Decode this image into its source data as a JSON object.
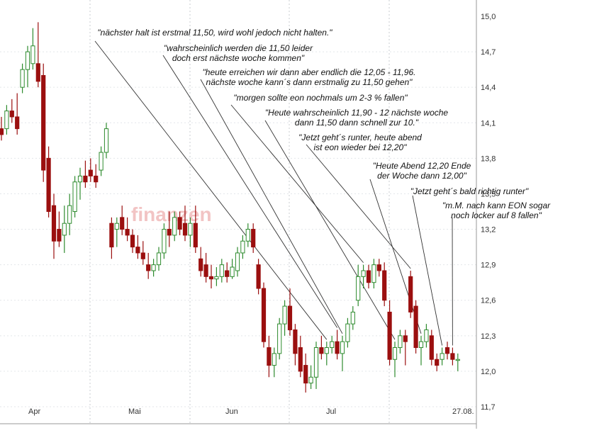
{
  "chart_data": {
    "type": "candlestick",
    "colors": {
      "up": "#2e8b2e",
      "down": "#9b0f0f",
      "grid": "#c8ccd2"
    },
    "ylim": [
      11.7,
      15.0
    ],
    "yticks": [
      "14,7",
      "14,4",
      "14,1",
      "13,8",
      "13,5",
      "13,2",
      "12,9",
      "12,6",
      "12,3",
      "12,0",
      "11,7"
    ],
    "yticks_top_partial": "15,0",
    "xlabels": [
      "Apr",
      "Mai",
      "Jun",
      "Jul",
      "27.08."
    ],
    "watermark": "finanzen",
    "series": [
      {
        "o": 14.05,
        "h": 14.15,
        "l": 13.95,
        "c": 14.0
      },
      {
        "o": 14.05,
        "h": 14.25,
        "l": 14.0,
        "c": 14.2
      },
      {
        "o": 14.2,
        "h": 14.3,
        "l": 14.1,
        "c": 14.15
      },
      {
        "o": 14.15,
        "h": 14.35,
        "l": 14.0,
        "c": 14.05
      },
      {
        "o": 14.4,
        "h": 14.6,
        "l": 14.35,
        "c": 14.55
      },
      {
        "o": 14.55,
        "h": 14.75,
        "l": 14.4,
        "c": 14.7
      },
      {
        "o": 14.6,
        "h": 14.9,
        "l": 14.55,
        "c": 14.75
      },
      {
        "o": 14.6,
        "h": 14.95,
        "l": 14.4,
        "c": 14.45
      },
      {
        "o": 14.5,
        "h": 14.6,
        "l": 13.6,
        "c": 13.7
      },
      {
        "o": 13.8,
        "h": 13.9,
        "l": 13.3,
        "c": 13.35
      },
      {
        "o": 13.4,
        "h": 13.5,
        "l": 12.95,
        "c": 13.1
      },
      {
        "o": 13.2,
        "h": 13.35,
        "l": 13.05,
        "c": 13.1
      },
      {
        "o": 13.15,
        "h": 13.4,
        "l": 13.0,
        "c": 13.25
      },
      {
        "o": 13.25,
        "h": 13.5,
        "l": 13.15,
        "c": 13.4
      },
      {
        "o": 13.35,
        "h": 13.65,
        "l": 13.3,
        "c": 13.6
      },
      {
        "o": 13.6,
        "h": 13.72,
        "l": 13.45,
        "c": 13.65
      },
      {
        "o": 13.65,
        "h": 13.78,
        "l": 13.55,
        "c": 13.6
      },
      {
        "o": 13.7,
        "h": 13.8,
        "l": 13.6,
        "c": 13.65
      },
      {
        "o": 13.65,
        "h": 13.75,
        "l": 13.55,
        "c": 13.6
      },
      {
        "o": 13.7,
        "h": 13.9,
        "l": 13.65,
        "c": 13.85
      },
      {
        "o": 13.85,
        "h": 14.1,
        "l": 13.8,
        "c": 14.05
      },
      {
        "o": 13.25,
        "h": 13.3,
        "l": 12.95,
        "c": 13.05
      },
      {
        "o": 13.2,
        "h": 13.3,
        "l": 13.05,
        "c": 13.25
      },
      {
        "o": 13.3,
        "h": 13.4,
        "l": 13.15,
        "c": 13.2
      },
      {
        "o": 13.2,
        "h": 13.3,
        "l": 13.1,
        "c": 13.15
      },
      {
        "o": 13.15,
        "h": 13.2,
        "l": 13.0,
        "c": 13.05
      },
      {
        "o": 13.05,
        "h": 13.15,
        "l": 12.95,
        "c": 13.0
      },
      {
        "o": 13.0,
        "h": 13.1,
        "l": 12.9,
        "c": 12.95
      },
      {
        "o": 12.9,
        "h": 13.0,
        "l": 12.78,
        "c": 12.85
      },
      {
        "o": 12.85,
        "h": 12.95,
        "l": 12.8,
        "c": 12.9
      },
      {
        "o": 12.9,
        "h": 13.05,
        "l": 12.85,
        "c": 13.0
      },
      {
        "o": 13.0,
        "h": 13.25,
        "l": 12.95,
        "c": 13.2
      },
      {
        "o": 13.2,
        "h": 13.35,
        "l": 13.05,
        "c": 13.15
      },
      {
        "o": 13.15,
        "h": 13.35,
        "l": 13.1,
        "c": 13.3
      },
      {
        "o": 13.3,
        "h": 13.35,
        "l": 13.15,
        "c": 13.2
      },
      {
        "o": 13.25,
        "h": 13.4,
        "l": 13.1,
        "c": 13.15
      },
      {
        "o": 13.15,
        "h": 13.3,
        "l": 13.05,
        "c": 13.25
      },
      {
        "o": 13.25,
        "h": 13.4,
        "l": 13.0,
        "c": 13.05
      },
      {
        "o": 12.95,
        "h": 13.05,
        "l": 12.8,
        "c": 12.85
      },
      {
        "o": 12.9,
        "h": 13.0,
        "l": 12.75,
        "c": 12.8
      },
      {
        "o": 12.8,
        "h": 12.9,
        "l": 12.7,
        "c": 12.78
      },
      {
        "o": 12.78,
        "h": 12.88,
        "l": 12.72,
        "c": 12.8
      },
      {
        "o": 12.8,
        "h": 12.95,
        "l": 12.75,
        "c": 12.9
      },
      {
        "o": 12.85,
        "h": 12.92,
        "l": 12.75,
        "c": 12.8
      },
      {
        "o": 12.8,
        "h": 12.95,
        "l": 12.78,
        "c": 12.88
      },
      {
        "o": 12.85,
        "h": 13.05,
        "l": 12.8,
        "c": 13.0
      },
      {
        "o": 13.0,
        "h": 13.15,
        "l": 12.95,
        "c": 13.1
      },
      {
        "o": 13.1,
        "h": 13.25,
        "l": 13.05,
        "c": 13.2
      },
      {
        "o": 13.2,
        "h": 13.25,
        "l": 13.0,
        "c": 13.05
      },
      {
        "o": 12.9,
        "h": 12.95,
        "l": 12.65,
        "c": 12.7
      },
      {
        "o": 12.7,
        "h": 12.75,
        "l": 12.2,
        "c": 12.25
      },
      {
        "o": 12.2,
        "h": 12.3,
        "l": 11.95,
        "c": 12.05
      },
      {
        "o": 12.05,
        "h": 12.2,
        "l": 11.95,
        "c": 12.15
      },
      {
        "o": 12.15,
        "h": 12.45,
        "l": 12.1,
        "c": 12.4
      },
      {
        "o": 12.4,
        "h": 12.6,
        "l": 12.3,
        "c": 12.55
      },
      {
        "o": 12.55,
        "h": 12.7,
        "l": 12.3,
        "c": 12.35
      },
      {
        "o": 12.35,
        "h": 12.4,
        "l": 12.05,
        "c": 12.15
      },
      {
        "o": 12.2,
        "h": 12.3,
        "l": 11.95,
        "c": 12.0
      },
      {
        "o": 12.05,
        "h": 12.15,
        "l": 11.82,
        "c": 11.9
      },
      {
        "o": 11.9,
        "h": 12.05,
        "l": 11.85,
        "c": 11.95
      },
      {
        "o": 11.95,
        "h": 12.25,
        "l": 11.85,
        "c": 12.2
      },
      {
        "o": 12.2,
        "h": 12.3,
        "l": 12.1,
        "c": 12.15
      },
      {
        "o": 12.15,
        "h": 12.25,
        "l": 12.05,
        "c": 12.2
      },
      {
        "o": 12.2,
        "h": 12.3,
        "l": 12.15,
        "c": 12.25
      },
      {
        "o": 12.25,
        "h": 12.35,
        "l": 12.1,
        "c": 12.15
      },
      {
        "o": 12.15,
        "h": 12.3,
        "l": 12.0,
        "c": 12.25
      },
      {
        "o": 12.25,
        "h": 12.45,
        "l": 12.2,
        "c": 12.4
      },
      {
        "o": 12.4,
        "h": 12.55,
        "l": 12.35,
        "c": 12.5
      },
      {
        "o": 12.6,
        "h": 12.9,
        "l": 12.55,
        "c": 12.8
      },
      {
        "o": 12.8,
        "h": 12.9,
        "l": 12.7,
        "c": 12.85
      },
      {
        "o": 12.85,
        "h": 12.9,
        "l": 12.7,
        "c": 12.75
      },
      {
        "o": 12.75,
        "h": 12.95,
        "l": 12.7,
        "c": 12.9
      },
      {
        "o": 12.9,
        "h": 12.95,
        "l": 12.8,
        "c": 12.85
      },
      {
        "o": 12.85,
        "h": 12.92,
        "l": 12.55,
        "c": 12.6
      },
      {
        "o": 12.5,
        "h": 12.6,
        "l": 12.05,
        "c": 12.1
      },
      {
        "o": 12.1,
        "h": 12.25,
        "l": 11.95,
        "c": 12.2
      },
      {
        "o": 12.2,
        "h": 12.35,
        "l": 12.15,
        "c": 12.3
      },
      {
        "o": 12.3,
        "h": 12.35,
        "l": 12.05,
        "c": 12.25
      },
      {
        "o": 12.8,
        "h": 12.85,
        "l": 12.45,
        "c": 12.5
      },
      {
        "o": 12.55,
        "h": 12.6,
        "l": 12.15,
        "c": 12.2
      },
      {
        "o": 12.2,
        "h": 12.3,
        "l": 12.05,
        "c": 12.25
      },
      {
        "o": 12.25,
        "h": 12.4,
        "l": 12.2,
        "c": 12.35
      },
      {
        "o": 12.3,
        "h": 12.35,
        "l": 12.05,
        "c": 12.1
      },
      {
        "o": 12.1,
        "h": 12.15,
        "l": 12.0,
        "c": 12.05
      },
      {
        "o": 12.1,
        "h": 12.2,
        "l": 12.05,
        "c": 12.15
      },
      {
        "o": 12.2,
        "h": 12.25,
        "l": 12.1,
        "c": 12.15
      },
      {
        "o": 12.15,
        "h": 12.2,
        "l": 12.05,
        "c": 12.1
      },
      {
        "o": 12.1,
        "h": 12.15,
        "l": 12.0,
        "c": 12.1
      }
    ],
    "annotations": [
      {
        "lines": [
          "\"nächster halt ist erstmal 11,50, wird wohl jedoch nicht halten.\""
        ],
        "target": 62
      },
      {
        "lines": [
          "\"wahrscheinlich werden die 11,50 leider",
          "doch erst nächste woche kommen\""
        ],
        "target": 64
      },
      {
        "lines": [
          "\"heute erreichen wir dann aber endlich die 12,05 - 11,96.",
          "nächste woche kann´s dann erstmalig zu 11,50 gehen\""
        ],
        "target": 65
      },
      {
        "lines": [
          "\"morgen sollte eon nochmals um 2-3 % fallen\""
        ],
        "target": 69
      },
      {
        "lines": [
          "\"Heute wahrscheinlich 11,90 - 12 nächste woche",
          "dann 11,50 dann schnell zur 10.\""
        ],
        "target": 75
      },
      {
        "lines": [
          "\"Jetzt geht´s runter, heute abend",
          "ist eon wieder bei 12,20\""
        ],
        "target": 78
      },
      {
        "lines": [
          "\"Heute Abend 12,20 Ende",
          "der Woche dann  12,00\""
        ],
        "target": 80
      },
      {
        "lines": [
          "\"Jetzt geht´s bald richtig runter\""
        ],
        "target": 84
      },
      {
        "lines": [
          "\"m.M. nach kann EON sogar",
          "noch locker auf 8 fallen\""
        ],
        "target": 86
      }
    ]
  }
}
